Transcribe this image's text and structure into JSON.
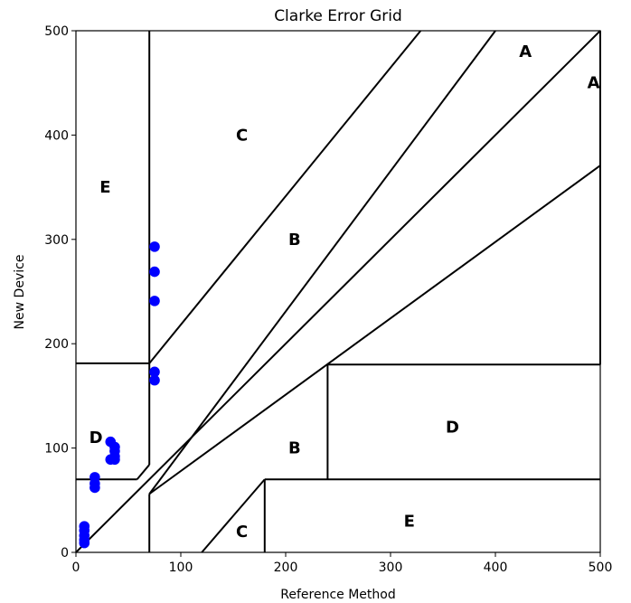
{
  "chart_data": {
    "type": "scatter",
    "title": "Clarke Error Grid",
    "xlabel": "Reference Method",
    "ylabel": "New Device",
    "xlim": [
      0,
      500
    ],
    "ylim": [
      0,
      500
    ],
    "xticks": [
      0,
      100,
      200,
      300,
      400,
      500
    ],
    "yticks": [
      0,
      100,
      200,
      300,
      400,
      500
    ],
    "grid": false,
    "point_color": "#0000ff",
    "line_color": "#000000",
    "points": [
      {
        "x": 75,
        "y": 293
      },
      {
        "x": 75,
        "y": 269
      },
      {
        "x": 75,
        "y": 241
      },
      {
        "x": 75,
        "y": 173
      },
      {
        "x": 75,
        "y": 165
      },
      {
        "x": 33,
        "y": 106
      },
      {
        "x": 37,
        "y": 101
      },
      {
        "x": 37,
        "y": 97
      },
      {
        "x": 37,
        "y": 92
      },
      {
        "x": 37,
        "y": 89
      },
      {
        "x": 33,
        "y": 89
      },
      {
        "x": 18,
        "y": 72
      },
      {
        "x": 18,
        "y": 66
      },
      {
        "x": 18,
        "y": 62
      },
      {
        "x": 8,
        "y": 25
      },
      {
        "x": 8,
        "y": 21
      },
      {
        "x": 8,
        "y": 16
      },
      {
        "x": 8,
        "y": 12
      },
      {
        "x": 8,
        "y": 9
      }
    ],
    "boundaries": [
      [
        [
          0,
          0
        ],
        [
          500,
          500
        ]
      ],
      [
        [
          0,
          181.25
        ],
        [
          70,
          181.25
        ]
      ],
      [
        [
          70,
          181.25
        ],
        [
          328.7,
          500
        ]
      ],
      [
        [
          70,
          0
        ],
        [
          70,
          56
        ]
      ],
      [
        [
          70,
          56
        ],
        [
          400,
          500
        ]
      ],
      [
        [
          70,
          84
        ],
        [
          70,
          500
        ]
      ],
      [
        [
          0,
          70
        ],
        [
          58.3,
          70
        ]
      ],
      [
        [
          58.3,
          70
        ],
        [
          70,
          84
        ]
      ],
      [
        [
          70,
          56
        ],
        [
          500,
          370.8
        ]
      ],
      [
        [
          120,
          0
        ],
        [
          180,
          70
        ]
      ],
      [
        [
          180,
          70
        ],
        [
          500,
          70
        ]
      ],
      [
        [
          180,
          0
        ],
        [
          180,
          70
        ]
      ],
      [
        [
          240,
          70
        ],
        [
          240,
          180
        ]
      ],
      [
        [
          240,
          180
        ],
        [
          500,
          180
        ]
      ],
      [
        [
          500,
          180
        ],
        [
          500,
          500
        ]
      ]
    ],
    "zone_labels": [
      {
        "text": "A",
        "x": 420,
        "y": 480
      },
      {
        "text": "A",
        "x": 485,
        "y": 450
      },
      {
        "text": "B",
        "x": 200,
        "y": 300
      },
      {
        "text": "B",
        "x": 200,
        "y": 100
      },
      {
        "text": "C",
        "x": 150,
        "y": 400
      },
      {
        "text": "C",
        "x": 150,
        "y": 20
      },
      {
        "text": "D",
        "x": 10,
        "y": 110
      },
      {
        "text": "D",
        "x": 350,
        "y": 120
      },
      {
        "text": "E",
        "x": 20,
        "y": 350
      },
      {
        "text": "E",
        "x": 310,
        "y": 30
      }
    ]
  }
}
